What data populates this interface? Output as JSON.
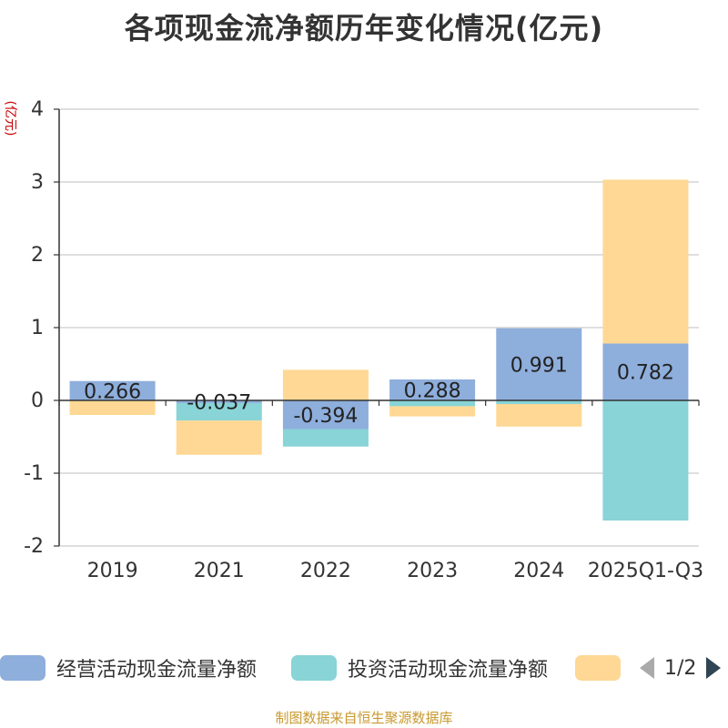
{
  "title": "各项现金流净额历年变化情况(亿元)",
  "unit_label": "(亿元)",
  "source": "制图数据来自恒生聚源数据库",
  "legend": {
    "items": [
      {
        "label": "经营活动现金流量净额",
        "color": "#8eaedc"
      },
      {
        "label": "投资活动现金流量净额",
        "color": "#88d4d6"
      },
      {
        "label": "",
        "color": "#fed894"
      }
    ],
    "page_text": "1/2"
  },
  "chart_data": {
    "type": "bar",
    "stacked": true,
    "title": "各项现金流净额历年变化情况(亿元)",
    "ylabel": "(亿元)",
    "ylim": [
      -2,
      4
    ],
    "yticks": [
      4,
      3,
      2,
      1,
      0,
      -1,
      -2
    ],
    "categories": [
      "2019",
      "2021",
      "2022",
      "2023",
      "2024",
      "2025Q1-Q3"
    ],
    "series": [
      {
        "name": "经营活动现金流量净额",
        "color": "#8eaedc",
        "values": [
          0.266,
          -0.037,
          -0.394,
          0.288,
          0.991,
          0.782
        ],
        "show_labels": true
      },
      {
        "name": "投资活动现金流量净额",
        "color": "#88d4d6",
        "values": [
          0.0,
          -0.24,
          -0.24,
          -0.08,
          -0.05,
          -1.65
        ],
        "show_labels": false
      },
      {
        "name": "",
        "color": "#fed894",
        "values": [
          -0.2,
          -0.47,
          0.42,
          -0.14,
          -0.31,
          2.25
        ],
        "show_labels": false
      }
    ]
  }
}
